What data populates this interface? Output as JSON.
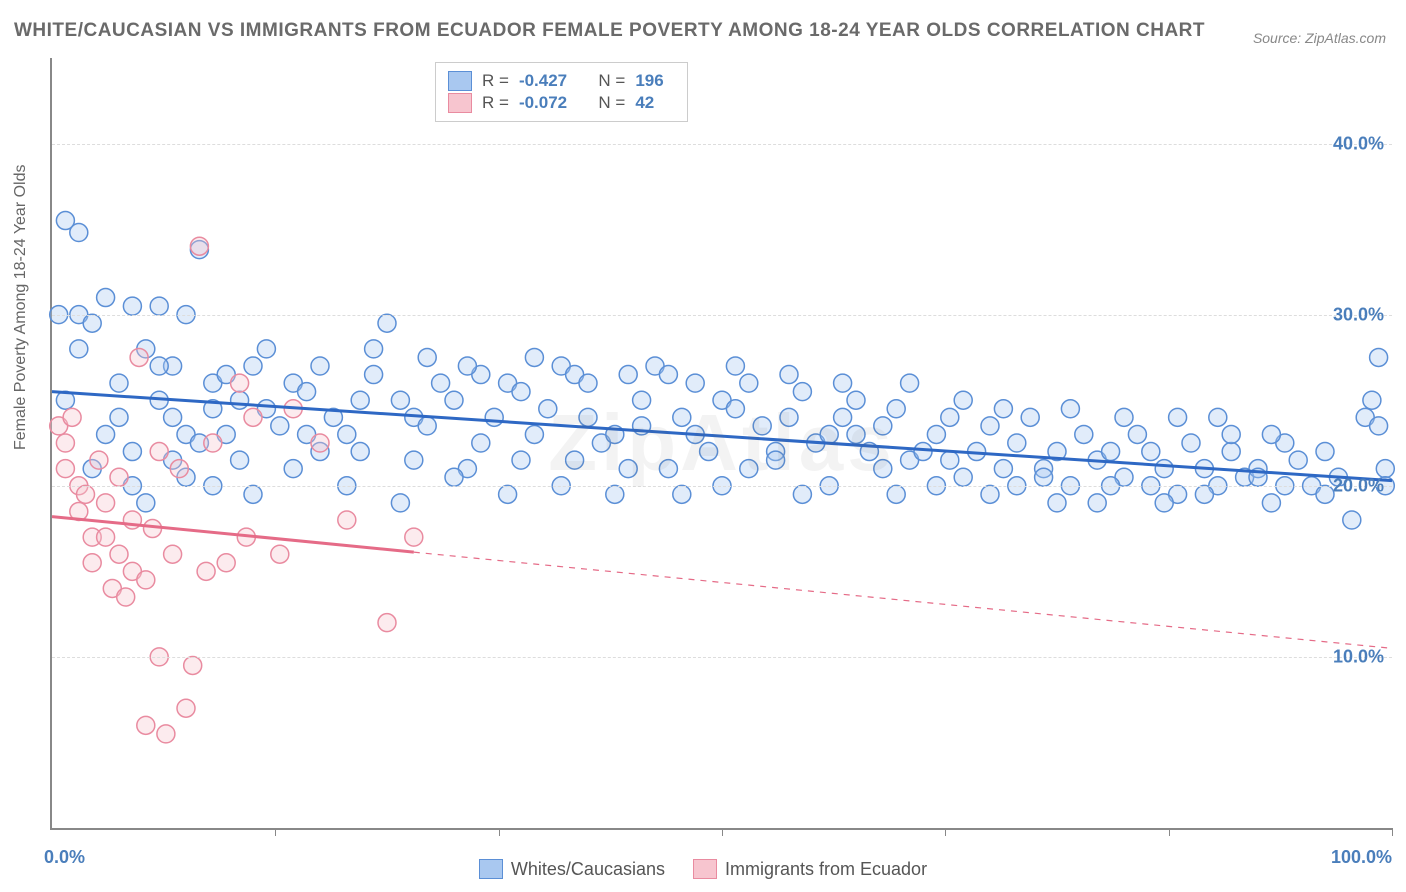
{
  "title": "WHITE/CAUCASIAN VS IMMIGRANTS FROM ECUADOR FEMALE POVERTY AMONG 18-24 YEAR OLDS CORRELATION CHART",
  "source": "Source: ZipAtlas.com",
  "ylabel": "Female Poverty Among 18-24 Year Olds",
  "watermark": "ZipAtlas",
  "chart": {
    "type": "scatter",
    "xlim": [
      0,
      100
    ],
    "ylim": [
      0,
      45
    ],
    "y_ticks": [
      {
        "value": 10,
        "label": "10.0%"
      },
      {
        "value": 20,
        "label": "20.0%"
      },
      {
        "value": 30,
        "label": "30.0%"
      },
      {
        "value": 40,
        "label": "40.0%"
      }
    ],
    "x_label_min": "0.0%",
    "x_label_max": "100.0%",
    "x_ticks_at": [
      16.67,
      33.33,
      50,
      66.67,
      83.33,
      100
    ],
    "background_color": "#ffffff",
    "grid_color": "#dddddd",
    "marker_radius": 9,
    "marker_fill_opacity": 0.35,
    "marker_stroke_width": 1.5,
    "regression_line_width": 3
  },
  "series": [
    {
      "name": "Whites/Caucasians",
      "color_fill": "#a9c8f0",
      "color_stroke": "#5b8fd6",
      "line_color": "#2e68c4",
      "R": "-0.427",
      "N": "196",
      "regression": {
        "x1": 0,
        "y1": 25.5,
        "x2": 100,
        "y2": 20.3,
        "solid_until_x": 100
      },
      "points": [
        [
          1,
          35.5
        ],
        [
          2,
          34.8
        ],
        [
          0.5,
          30
        ],
        [
          2,
          30
        ],
        [
          3,
          29.5
        ],
        [
          5,
          26
        ],
        [
          1,
          25
        ],
        [
          2,
          28
        ],
        [
          4,
          31
        ],
        [
          6,
          30.5
        ],
        [
          7,
          28
        ],
        [
          8,
          30.5
        ],
        [
          9,
          27
        ],
        [
          10,
          30
        ],
        [
          11,
          33.8
        ],
        [
          12,
          26
        ],
        [
          8,
          25
        ],
        [
          9,
          24
        ],
        [
          10,
          23
        ],
        [
          11,
          22.5
        ],
        [
          12,
          24.5
        ],
        [
          13,
          26.5
        ],
        [
          14,
          25
        ],
        [
          15,
          27
        ],
        [
          16,
          24.5
        ],
        [
          17,
          23.5
        ],
        [
          18,
          26
        ],
        [
          19,
          25.5
        ],
        [
          20,
          27
        ],
        [
          21,
          24
        ],
        [
          22,
          23
        ],
        [
          23,
          22
        ],
        [
          24,
          26.5
        ],
        [
          25,
          29.5
        ],
        [
          26,
          25
        ],
        [
          27,
          24
        ],
        [
          28,
          23.5
        ],
        [
          29,
          26
        ],
        [
          30,
          25
        ],
        [
          31,
          21
        ],
        [
          32,
          22.5
        ],
        [
          33,
          24
        ],
        [
          34,
          26
        ],
        [
          35,
          25.5
        ],
        [
          36,
          23
        ],
        [
          37,
          24.5
        ],
        [
          38,
          27
        ],
        [
          39,
          26.5
        ],
        [
          40,
          24
        ],
        [
          41,
          22.5
        ],
        [
          42,
          23
        ],
        [
          43,
          26.5
        ],
        [
          44,
          25
        ],
        [
          45,
          27
        ],
        [
          46,
          26.5
        ],
        [
          47,
          24
        ],
        [
          48,
          23
        ],
        [
          49,
          22
        ],
        [
          50,
          25
        ],
        [
          51,
          24.5
        ],
        [
          52,
          26
        ],
        [
          53,
          23.5
        ],
        [
          54,
          22
        ],
        [
          55,
          24
        ],
        [
          56,
          25.5
        ],
        [
          57,
          22.5
        ],
        [
          58,
          23
        ],
        [
          59,
          24
        ],
        [
          60,
          25
        ],
        [
          61,
          22
        ],
        [
          62,
          23.5
        ],
        [
          63,
          24.5
        ],
        [
          64,
          21.5
        ],
        [
          65,
          22
        ],
        [
          66,
          23
        ],
        [
          67,
          24
        ],
        [
          68,
          20.5
        ],
        [
          69,
          22
        ],
        [
          70,
          23.5
        ],
        [
          71,
          21
        ],
        [
          72,
          22.5
        ],
        [
          73,
          24
        ],
        [
          74,
          21
        ],
        [
          75,
          22
        ],
        [
          76,
          20
        ],
        [
          77,
          23
        ],
        [
          78,
          21.5
        ],
        [
          79,
          22
        ],
        [
          80,
          20.5
        ],
        [
          81,
          23
        ],
        [
          82,
          22
        ],
        [
          83,
          21
        ],
        [
          84,
          19.5
        ],
        [
          85,
          22.5
        ],
        [
          86,
          21
        ],
        [
          87,
          20
        ],
        [
          88,
          22
        ],
        [
          89,
          20.5
        ],
        [
          90,
          21
        ],
        [
          91,
          19
        ],
        [
          92,
          20
        ],
        [
          93,
          21.5
        ],
        [
          94,
          20
        ],
        [
          95,
          22
        ],
        [
          96,
          20.5
        ],
        [
          97,
          18
        ],
        [
          98,
          24
        ],
        [
          98.5,
          25
        ],
        [
          99,
          27.5
        ],
        [
          99,
          23.5
        ],
        [
          99.5,
          21
        ],
        [
          99.5,
          20
        ],
        [
          6,
          20
        ],
        [
          7,
          19
        ],
        [
          10,
          20.5
        ],
        [
          12,
          20
        ],
        [
          15,
          19.5
        ],
        [
          18,
          21
        ],
        [
          22,
          20
        ],
        [
          26,
          19
        ],
        [
          30,
          20.5
        ],
        [
          34,
          19.5
        ],
        [
          38,
          20
        ],
        [
          42,
          19.5
        ],
        [
          46,
          21
        ],
        [
          50,
          20
        ],
        [
          54,
          21.5
        ],
        [
          58,
          20
        ],
        [
          62,
          21
        ],
        [
          66,
          20
        ],
        [
          70,
          19.5
        ],
        [
          74,
          20.5
        ],
        [
          78,
          19
        ],
        [
          82,
          20
        ],
        [
          86,
          19.5
        ],
        [
          90,
          20.5
        ],
        [
          4,
          23
        ],
        [
          6,
          22
        ],
        [
          8,
          27
        ],
        [
          13,
          23
        ],
        [
          16,
          28
        ],
        [
          20,
          22
        ],
        [
          24,
          28
        ],
        [
          28,
          27.5
        ],
        [
          32,
          26.5
        ],
        [
          36,
          27.5
        ],
        [
          40,
          26
        ],
        [
          44,
          23.5
        ],
        [
          48,
          26
        ],
        [
          52,
          21
        ],
        [
          56,
          19.5
        ],
        [
          60,
          23
        ],
        [
          64,
          26
        ],
        [
          68,
          25
        ],
        [
          72,
          20
        ],
        [
          76,
          24.5
        ],
        [
          80,
          24
        ],
        [
          84,
          24
        ],
        [
          88,
          23
        ],
        [
          92,
          22.5
        ],
        [
          14,
          21.5
        ],
        [
          19,
          23
        ],
        [
          23,
          25
        ],
        [
          27,
          21.5
        ],
        [
          31,
          27
        ],
        [
          35,
          21.5
        ],
        [
          39,
          21.5
        ],
        [
          43,
          21
        ],
        [
          47,
          19.5
        ],
        [
          51,
          27
        ],
        [
          55,
          26.5
        ],
        [
          59,
          26
        ],
        [
          63,
          19.5
        ],
        [
          67,
          21.5
        ],
        [
          71,
          24.5
        ],
        [
          75,
          19
        ],
        [
          79,
          20
        ],
        [
          83,
          19
        ],
        [
          87,
          24
        ],
        [
          91,
          23
        ],
        [
          95,
          19.5
        ],
        [
          3,
          21
        ],
        [
          5,
          24
        ],
        [
          9,
          21.5
        ]
      ]
    },
    {
      "name": "Immigrants from Ecuador",
      "color_fill": "#f7c5cf",
      "color_stroke": "#e98ba0",
      "line_color": "#e56b87",
      "R": "-0.072",
      "N": "42",
      "regression": {
        "x1": 0,
        "y1": 18.2,
        "x2": 100,
        "y2": 10.5,
        "solid_until_x": 27
      },
      "points": [
        [
          0.5,
          23.5
        ],
        [
          1,
          21
        ],
        [
          1,
          22.5
        ],
        [
          1.5,
          24
        ],
        [
          2,
          20
        ],
        [
          2,
          18.5
        ],
        [
          2.5,
          19.5
        ],
        [
          3,
          17
        ],
        [
          3,
          15.5
        ],
        [
          3.5,
          21.5
        ],
        [
          4,
          17
        ],
        [
          4,
          19
        ],
        [
          4.5,
          14
        ],
        [
          5,
          20.5
        ],
        [
          5,
          16
        ],
        [
          5.5,
          13.5
        ],
        [
          6,
          18
        ],
        [
          6,
          15
        ],
        [
          6.5,
          27.5
        ],
        [
          7,
          14.5
        ],
        [
          7,
          6
        ],
        [
          7.5,
          17.5
        ],
        [
          8,
          22
        ],
        [
          8,
          10
        ],
        [
          8.5,
          5.5
        ],
        [
          9,
          16
        ],
        [
          9.5,
          21
        ],
        [
          10,
          7
        ],
        [
          10.5,
          9.5
        ],
        [
          11,
          34
        ],
        [
          11.5,
          15
        ],
        [
          12,
          22.5
        ],
        [
          13,
          15.5
        ],
        [
          14,
          26
        ],
        [
          14.5,
          17
        ],
        [
          15,
          24
        ],
        [
          17,
          16
        ],
        [
          18,
          24.5
        ],
        [
          20,
          22.5
        ],
        [
          22,
          18
        ],
        [
          25,
          12
        ],
        [
          27,
          17
        ]
      ]
    }
  ],
  "legend_bottom": [
    {
      "label": "Whites/Caucasians",
      "fill": "#a9c8f0",
      "stroke": "#5b8fd6"
    },
    {
      "label": "Immigrants from Ecuador",
      "fill": "#f7c5cf",
      "stroke": "#e98ba0"
    }
  ]
}
